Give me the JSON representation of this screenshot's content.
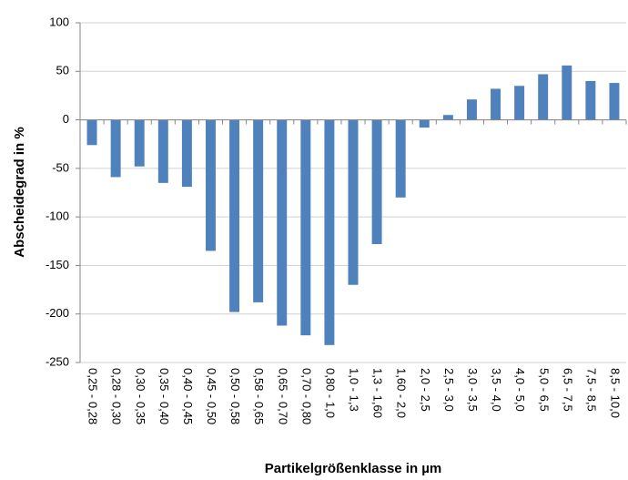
{
  "chart_data": {
    "type": "bar",
    "xlabel": "Partikelgrößenklasse in µm",
    "ylabel": "Abscheidegrad in %",
    "categories": [
      "0,25 - 0,28",
      "0,28 - 0,30",
      "0,30 - 0,35",
      "0,35 - 0,40",
      "0,40 - 0,45",
      "0,45 - 0,50",
      "0,50 - 0,58",
      "0,58 - 0,65",
      "0,65 - 0,70",
      "0,70 - 0,80",
      "0,80 - 1,0",
      "1,0 - 1,3",
      "1,3 - 1,60",
      "1,60 - 2,0",
      "2,0 - 2,5",
      "2,5 - 3,0",
      "3,0 - 3,5",
      "3,5 - 4,0",
      "4,0 - 5,0",
      "5,0 - 6,5",
      "6,5 - 7,5",
      "7,5 - 8,5",
      "8,5 - 10,0"
    ],
    "values": [
      -26,
      -59,
      -48,
      -65,
      -69,
      -135,
      -198,
      -188,
      -212,
      -222,
      -232,
      -170,
      -128,
      -80,
      -8,
      5,
      21,
      32,
      35,
      47,
      56,
      40,
      38
    ],
    "color": "#4f81bd",
    "ylim": [
      -250,
      100
    ],
    "yticks": [
      -250,
      -200,
      -150,
      -100,
      -50,
      0,
      50,
      100
    ],
    "grid": true
  }
}
